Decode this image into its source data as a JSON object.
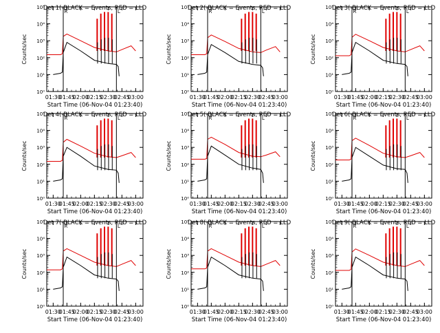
{
  "figure": {
    "ylabel": "Counts/sec",
    "xlabel": "Start Time (06-Nov-04 01:23:40)",
    "x_ticks": [
      "01:30",
      "01:45",
      "02:00",
      "02:15",
      "02:30",
      "02:45",
      "03:00"
    ],
    "y_ticks": [
      "10⁰",
      "10¹",
      "10²",
      "10³",
      "10⁴",
      "10⁵"
    ],
    "marker_start": "R",
    "marker_end": "L",
    "colors": {
      "events": "#000000",
      "lld": "#e00000"
    }
  },
  "chart_data": [
    {
      "type": "line",
      "title": "Det 1(-BLACK = Events, RED = LLD",
      "xlabel": "Start Time (06-Nov-04 01:23:40)",
      "ylabel": "Counts/sec",
      "xlim": [
        "01:23",
        "03:08"
      ],
      "ylim": [
        1,
        100000
      ],
      "log_y": true,
      "markers": {
        "start": "01:41",
        "end": "02:39"
      },
      "series": [
        {
          "name": "BLACK = Events",
          "x": [
            "01:30",
            "01:38",
            "01:40",
            "01:41",
            "01:45",
            "02:00",
            "02:15",
            "02:30",
            "02:39",
            "02:41",
            "02:42"
          ],
          "values": [
            10,
            12,
            14,
            200,
            800,
            250,
            70,
            45,
            40,
            30,
            8
          ]
        },
        {
          "name": "RED = LLD",
          "x": [
            "01:23",
            "01:38",
            "01:40",
            "01:41",
            "01:45",
            "02:00",
            "02:15",
            "02:30",
            "02:39",
            "02:45",
            "02:55",
            "03:00"
          ],
          "values": [
            150,
            150,
            170,
            1800,
            2500,
            1000,
            400,
            250,
            220,
            300,
            500,
            250
          ]
        }
      ],
      "spikes": {
        "x": [
          "02:18",
          "02:22",
          "02:26",
          "02:30",
          "02:34"
        ],
        "lld": [
          20000,
          40000,
          50000,
          50000,
          40000
        ],
        "events": [
          800,
          1200,
          1500,
          1500,
          1200
        ]
      }
    },
    {
      "type": "line",
      "title": "Det 2(-BLACK = Events, RED = LLD",
      "xlabel": "Start Time (06-Nov-04 01:23:40)",
      "ylabel": "Counts/sec",
      "xlim": [
        "01:23",
        "03:08"
      ],
      "ylim": [
        1,
        100000
      ],
      "log_y": true,
      "markers": {
        "start": "01:41",
        "end": "02:39"
      },
      "series": [
        {
          "name": "BLACK = Events",
          "x": [
            "01:30",
            "01:38",
            "01:40",
            "01:41",
            "01:45",
            "02:00",
            "02:15",
            "02:30",
            "02:39",
            "02:41",
            "02:42"
          ],
          "values": [
            10,
            12,
            14,
            150,
            600,
            200,
            60,
            40,
            35,
            25,
            8
          ]
        },
        {
          "name": "RED = LLD",
          "x": [
            "01:23",
            "01:38",
            "01:40",
            "01:41",
            "01:45",
            "02:00",
            "02:15",
            "02:30",
            "02:39",
            "02:45",
            "02:55",
            "03:00"
          ],
          "values": [
            150,
            150,
            170,
            1500,
            2200,
            900,
            350,
            220,
            200,
            280,
            450,
            220
          ]
        }
      ],
      "spikes": {
        "x": [
          "02:18",
          "02:22",
          "02:26",
          "02:30",
          "02:34"
        ],
        "lld": [
          20000,
          40000,
          50000,
          50000,
          40000
        ],
        "events": [
          800,
          1200,
          1500,
          1500,
          1200
        ]
      }
    },
    {
      "type": "line",
      "title": "Det 3(-BLACK = Events, RED = LLD",
      "xlabel": "Start Time (06-Nov-04 01:23:40)",
      "ylabel": "Counts/sec",
      "xlim": [
        "01:23",
        "03:08"
      ],
      "ylim": [
        1,
        100000
      ],
      "log_y": true,
      "markers": {
        "start": "01:41",
        "end": "02:39"
      },
      "series": [
        {
          "name": "BLACK = Events",
          "x": [
            "01:30",
            "01:38",
            "01:40",
            "01:41",
            "01:45",
            "02:00",
            "02:15",
            "02:30",
            "02:39",
            "02:41",
            "02:42"
          ],
          "values": [
            10,
            12,
            14,
            200,
            800,
            250,
            70,
            45,
            40,
            30,
            8
          ]
        },
        {
          "name": "RED = LLD",
          "x": [
            "01:23",
            "01:38",
            "01:40",
            "01:41",
            "01:45",
            "02:00",
            "02:15",
            "02:30",
            "02:39",
            "02:45",
            "02:55",
            "03:00"
          ],
          "values": [
            130,
            130,
            150,
            1600,
            2400,
            1000,
            400,
            250,
            220,
            300,
            500,
            250
          ]
        }
      ],
      "spikes": {
        "x": [
          "02:18",
          "02:22",
          "02:26",
          "02:30",
          "02:34"
        ],
        "lld": [
          20000,
          40000,
          50000,
          50000,
          40000
        ],
        "events": [
          800,
          1200,
          1500,
          1500,
          1200
        ]
      }
    },
    {
      "type": "line",
      "title": "Det 4(-BLACK = Events, RED = LLD",
      "xlabel": "Start Time (06-Nov-04 01:23:40)",
      "ylabel": "Counts/sec",
      "xlim": [
        "01:23",
        "03:08"
      ],
      "ylim": [
        1,
        100000
      ],
      "log_y": true,
      "markers": {
        "start": "01:41",
        "end": "02:39"
      },
      "series": [
        {
          "name": "BLACK = Events",
          "x": [
            "01:30",
            "01:38",
            "01:40",
            "01:41",
            "01:45",
            "02:00",
            "02:15",
            "02:30",
            "02:39",
            "02:41",
            "02:42"
          ],
          "values": [
            10,
            12,
            14,
            300,
            1000,
            300,
            80,
            50,
            45,
            30,
            8
          ]
        },
        {
          "name": "RED = LLD",
          "x": [
            "01:23",
            "01:38",
            "01:40",
            "01:41",
            "01:45",
            "02:00",
            "02:15",
            "02:30",
            "02:39",
            "02:45",
            "02:55",
            "03:00"
          ],
          "values": [
            150,
            150,
            170,
            2000,
            3000,
            1200,
            450,
            280,
            250,
            320,
            500,
            250
          ]
        }
      ],
      "spikes": {
        "x": [
          "02:18",
          "02:22",
          "02:26",
          "02:30",
          "02:34"
        ],
        "lld": [
          20000,
          40000,
          50000,
          50000,
          40000
        ],
        "events": [
          800,
          1200,
          1500,
          1500,
          1200
        ]
      }
    },
    {
      "type": "line",
      "title": "Det 5(-BLACK = Events, RED = LLD",
      "xlabel": "Start Time (06-Nov-04 01:23:40)",
      "ylabel": "Counts/sec",
      "xlim": [
        "01:23",
        "03:08"
      ],
      "ylim": [
        1,
        100000
      ],
      "log_y": true,
      "markers": {
        "start": "01:41",
        "end": "02:39"
      },
      "series": [
        {
          "name": "BLACK = Events",
          "x": [
            "01:30",
            "01:38",
            "01:40",
            "01:41",
            "01:45",
            "02:00",
            "02:15",
            "02:30",
            "02:39",
            "02:41",
            "02:42"
          ],
          "values": [
            10,
            12,
            14,
            300,
            1200,
            350,
            100,
            60,
            50,
            30,
            8
          ]
        },
        {
          "name": "RED = LLD",
          "x": [
            "01:23",
            "01:38",
            "01:40",
            "01:41",
            "01:45",
            "02:00",
            "02:15",
            "02:30",
            "02:39",
            "02:45",
            "02:55",
            "03:00"
          ],
          "values": [
            200,
            200,
            220,
            3000,
            4000,
            1500,
            500,
            300,
            280,
            350,
            550,
            280
          ]
        }
      ],
      "spikes": {
        "x": [
          "02:18",
          "02:22",
          "02:26",
          "02:30",
          "02:34"
        ],
        "lld": [
          20000,
          40000,
          50000,
          50000,
          40000
        ],
        "events": [
          800,
          1200,
          1500,
          1500,
          1200
        ]
      }
    },
    {
      "type": "line",
      "title": "Det 6(-BLACK = Events, RED = LLD",
      "xlabel": "Start Time (06-Nov-04 01:23:40)",
      "ylabel": "Counts/sec",
      "xlim": [
        "01:23",
        "03:08"
      ],
      "ylim": [
        1,
        100000
      ],
      "log_y": true,
      "markers": {
        "start": "01:41",
        "end": "02:39"
      },
      "series": [
        {
          "name": "BLACK = Events",
          "x": [
            "01:30",
            "01:38",
            "01:40",
            "01:41",
            "01:45",
            "02:00",
            "02:15",
            "02:30",
            "02:39",
            "02:41",
            "02:42"
          ],
          "values": [
            10,
            12,
            14,
            250,
            1000,
            300,
            90,
            55,
            50,
            30,
            8
          ]
        },
        {
          "name": "RED = LLD",
          "x": [
            "01:23",
            "01:38",
            "01:40",
            "01:41",
            "01:45",
            "02:00",
            "02:15",
            "02:30",
            "02:39",
            "02:45",
            "02:55",
            "03:00"
          ],
          "values": [
            180,
            180,
            200,
            2500,
            3500,
            1300,
            450,
            280,
            250,
            320,
            500,
            250
          ]
        }
      ],
      "spikes": {
        "x": [
          "02:18",
          "02:22",
          "02:26",
          "02:30",
          "02:34"
        ],
        "lld": [
          20000,
          40000,
          50000,
          50000,
          40000
        ],
        "events": [
          800,
          1200,
          1500,
          1500,
          1200
        ]
      }
    },
    {
      "type": "line",
      "title": "Det 7(-BLACK = Events, RED = LLD",
      "xlabel": "Start Time (06-Nov-04 01:23:40)",
      "ylabel": "Counts/sec",
      "xlim": [
        "01:23",
        "03:08"
      ],
      "ylim": [
        1,
        100000
      ],
      "log_y": true,
      "markers": {
        "start": "01:41",
        "end": "02:39"
      },
      "series": [
        {
          "name": "BLACK = Events",
          "x": [
            "01:30",
            "01:38",
            "01:40",
            "01:41",
            "01:45",
            "02:00",
            "02:15",
            "02:30",
            "02:39",
            "02:41",
            "02:42"
          ],
          "values": [
            10,
            12,
            14,
            200,
            800,
            250,
            70,
            45,
            40,
            30,
            8
          ]
        },
        {
          "name": "RED = LLD",
          "x": [
            "01:23",
            "01:38",
            "01:40",
            "01:41",
            "01:45",
            "02:00",
            "02:15",
            "02:30",
            "02:39",
            "02:45",
            "02:55",
            "03:00"
          ],
          "values": [
            140,
            140,
            160,
            1800,
            2500,
            1000,
            400,
            250,
            220,
            300,
            500,
            250
          ]
        }
      ],
      "spikes": {
        "x": [
          "02:18",
          "02:22",
          "02:26",
          "02:30",
          "02:34"
        ],
        "lld": [
          20000,
          40000,
          50000,
          50000,
          40000
        ],
        "events": [
          800,
          1200,
          1500,
          1500,
          1200
        ]
      }
    },
    {
      "type": "line",
      "title": "Det 8(-BLACK = Events, RED = LLD",
      "xlabel": "Start Time (06-Nov-04 01:23:40)",
      "ylabel": "Counts/sec",
      "xlim": [
        "01:23",
        "03:08"
      ],
      "ylim": [
        1,
        100000
      ],
      "log_y": true,
      "markers": {
        "start": "01:41",
        "end": "02:39"
      },
      "series": [
        {
          "name": "BLACK = Events",
          "x": [
            "01:30",
            "01:38",
            "01:40",
            "01:41",
            "01:45",
            "02:00",
            "02:15",
            "02:30",
            "02:39",
            "02:41",
            "02:42"
          ],
          "values": [
            10,
            12,
            14,
            200,
            800,
            250,
            70,
            45,
            40,
            30,
            8
          ]
        },
        {
          "name": "RED = LLD",
          "x": [
            "01:23",
            "01:38",
            "01:40",
            "01:41",
            "01:45",
            "02:00",
            "02:15",
            "02:30",
            "02:39",
            "02:45",
            "02:55",
            "03:00"
          ],
          "values": [
            160,
            160,
            180,
            1800,
            2500,
            1000,
            400,
            250,
            220,
            300,
            500,
            250
          ]
        }
      ],
      "spikes": {
        "x": [
          "02:18",
          "02:22",
          "02:26",
          "02:30",
          "02:34"
        ],
        "lld": [
          20000,
          40000,
          50000,
          50000,
          40000
        ],
        "events": [
          800,
          1200,
          1500,
          1500,
          1200
        ]
      }
    },
    {
      "type": "line",
      "title": "Det 9(-BLACK = Events, RED = LLD",
      "xlabel": "Start Time (06-Nov-04 01:23:40)",
      "ylabel": "Counts/sec",
      "xlim": [
        "01:23",
        "03:08"
      ],
      "ylim": [
        1,
        100000
      ],
      "log_y": true,
      "markers": {
        "start": "01:41",
        "end": "02:39"
      },
      "series": [
        {
          "name": "BLACK = Events",
          "x": [
            "01:30",
            "01:38",
            "01:40",
            "01:41",
            "01:45",
            "02:00",
            "02:15",
            "02:30",
            "02:39",
            "02:41",
            "02:42"
          ],
          "values": [
            10,
            12,
            14,
            200,
            800,
            250,
            70,
            45,
            40,
            30,
            8
          ]
        },
        {
          "name": "RED = LLD",
          "x": [
            "01:23",
            "01:38",
            "01:40",
            "01:41",
            "01:45",
            "02:00",
            "02:15",
            "02:30",
            "02:39",
            "02:45",
            "02:55",
            "03:00"
          ],
          "values": [
            130,
            130,
            150,
            1600,
            2400,
            1000,
            400,
            250,
            220,
            300,
            500,
            250
          ]
        }
      ],
      "spikes": {
        "x": [
          "02:18",
          "02:22",
          "02:26",
          "02:30",
          "02:34"
        ],
        "lld": [
          20000,
          40000,
          50000,
          50000,
          40000
        ],
        "events": [
          800,
          1200,
          1500,
          1500,
          1200
        ]
      }
    }
  ]
}
